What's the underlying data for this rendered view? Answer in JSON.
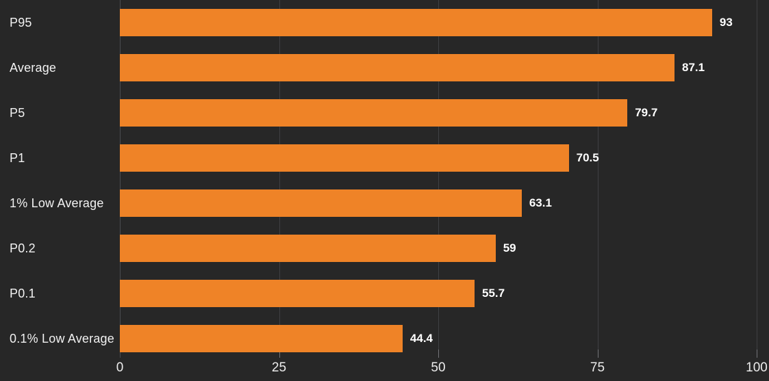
{
  "chart_data": {
    "type": "bar",
    "orientation": "horizontal",
    "title": "",
    "categories": [
      "P95",
      "Average",
      "P5",
      "P1",
      "1% Low Average",
      "P0.2",
      "P0.1",
      "0.1% Low Average"
    ],
    "values": [
      93,
      87.1,
      79.7,
      70.5,
      63.1,
      59,
      55.7,
      44.4
    ],
    "value_labels": [
      "93",
      "87.1",
      "79.7",
      "70.5",
      "63.1",
      "59",
      "55.7",
      "44.4"
    ],
    "xlabel": "",
    "ylabel": "",
    "xlim": [
      0,
      100
    ],
    "xticks": [
      0,
      25,
      50,
      75,
      100
    ],
    "xtick_labels": [
      "0",
      "25",
      "50",
      "75",
      "100"
    ],
    "grid": "vertical-faint-behind-bars",
    "legend": "none"
  },
  "colors": {
    "background": "#272727",
    "bar": "#EF8327",
    "category_label": "#F2F2F2",
    "value_label": "#FFFFFF",
    "tick_label": "#EDEDED",
    "gridline": "#3F4043",
    "axis_line": "#4A4B4F",
    "tick_mark": "#737478"
  }
}
